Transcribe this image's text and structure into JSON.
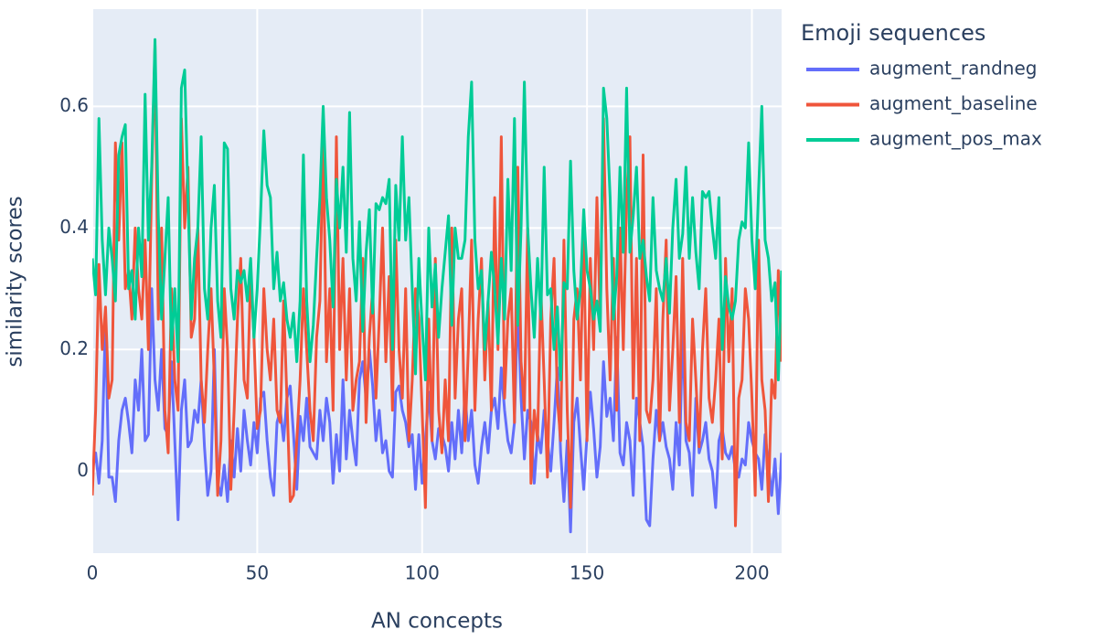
{
  "chart_data": {
    "type": "line",
    "xlabel": "AN concepts",
    "ylabel": "similarity scores",
    "legend_title": "Emoji sequences",
    "legend": "right",
    "grid": true,
    "xlim": [
      0,
      209
    ],
    "ylim": [
      -0.135,
      0.76
    ],
    "xticks": [
      0,
      50,
      100,
      150,
      200
    ],
    "yticks": [
      0,
      0.2,
      0.4,
      0.6
    ],
    "series": [
      {
        "name": "augment_randneg",
        "color": "#636efa",
        "values": [
          0.0,
          0.03,
          -0.02,
          0.05,
          0.25,
          -0.01,
          -0.01,
          -0.05,
          0.05,
          0.1,
          0.12,
          0.08,
          0.03,
          0.15,
          0.1,
          0.2,
          0.05,
          0.06,
          0.3,
          0.15,
          0.1,
          0.2,
          0.07,
          0.06,
          0.18,
          0.05,
          -0.08,
          0.1,
          0.15,
          0.04,
          0.05,
          0.1,
          0.08,
          0.15,
          0.04,
          -0.04,
          0.0,
          0.2,
          -0.02,
          -0.04,
          0.01,
          -0.05,
          0.05,
          -0.01,
          0.07,
          0.0,
          0.1,
          0.05,
          0.01,
          0.08,
          0.03,
          0.12,
          0.13,
          0.05,
          -0.01,
          -0.04,
          0.08,
          0.1,
          0.05,
          0.12,
          0.14,
          0.06,
          -0.03,
          0.09,
          0.05,
          0.12,
          0.04,
          0.03,
          0.02,
          0.1,
          0.05,
          0.12,
          0.08,
          -0.02,
          0.06,
          0.0,
          0.15,
          0.02,
          0.1,
          0.05,
          0.01,
          0.15,
          0.18,
          0.12,
          0.2,
          0.14,
          0.05,
          0.1,
          0.03,
          0.05,
          0.0,
          -0.01,
          0.13,
          0.14,
          0.1,
          0.08,
          0.04,
          0.06,
          -0.03,
          0.06,
          -0.02,
          0.05,
          0.13,
          0.05,
          0.02,
          0.07,
          0.06,
          0.04,
          0.0,
          0.08,
          0.02,
          0.1,
          0.03,
          0.13,
          0.05,
          0.1,
          0.01,
          -0.02,
          0.04,
          0.08,
          0.03,
          0.1,
          0.12,
          0.07,
          0.17,
          0.1,
          0.05,
          0.03,
          0.08,
          0.28,
          0.12,
          0.02,
          0.1,
          0.08,
          -0.02,
          0.06,
          0.03,
          0.1,
          0.05,
          0.0,
          0.08,
          0.17,
          0.03,
          -0.05,
          0.05,
          -0.1,
          0.08,
          0.12,
          0.04,
          -0.03,
          0.06,
          0.13,
          0.07,
          -0.01,
          0.04,
          0.18,
          0.09,
          0.12,
          0.05,
          0.22,
          0.03,
          0.01,
          0.08,
          0.05,
          -0.04,
          0.12,
          0.08,
          0.04,
          -0.08,
          -0.09,
          0.02,
          0.1,
          0.05,
          0.08,
          0.04,
          0.02,
          -0.03,
          0.08,
          0.01,
          0.24,
          0.05,
          0.03,
          -0.04,
          0.12,
          0.03,
          0.05,
          0.08,
          0.02,
          0.0,
          -0.06,
          0.05,
          0.07,
          0.03,
          0.02,
          0.04,
          0.0,
          -0.01,
          0.02,
          0.01,
          0.08,
          0.05,
          0.03,
          0.02,
          -0.03,
          0.06,
          0.01,
          -0.04,
          0.02,
          -0.07,
          0.03
        ]
      },
      {
        "name": "augment_baseline",
        "color": "#ef553b",
        "values": [
          -0.04,
          0.1,
          0.34,
          0.2,
          0.27,
          0.12,
          0.15,
          0.54,
          0.38,
          0.54,
          0.3,
          0.33,
          0.25,
          0.4,
          0.3,
          0.25,
          0.38,
          0.2,
          0.48,
          0.7,
          0.25,
          0.4,
          0.1,
          0.03,
          0.3,
          0.15,
          0.1,
          0.58,
          0.4,
          0.5,
          0.22,
          0.25,
          0.4,
          0.15,
          0.08,
          0.2,
          0.3,
          0.15,
          -0.04,
          0.05,
          0.3,
          0.2,
          -0.03,
          0.1,
          0.25,
          0.35,
          0.15,
          0.12,
          0.33,
          0.22,
          0.07,
          0.1,
          0.3,
          0.2,
          0.15,
          0.25,
          0.1,
          0.08,
          0.28,
          0.12,
          -0.05,
          -0.04,
          0.05,
          0.15,
          0.3,
          0.2,
          0.1,
          0.05,
          0.22,
          0.28,
          0.55,
          0.18,
          0.3,
          0.1,
          0.55,
          0.2,
          0.35,
          0.15,
          0.3,
          0.1,
          0.15,
          0.18,
          0.35,
          0.08,
          0.22,
          0.3,
          0.12,
          0.25,
          0.4,
          0.18,
          0.32,
          0.1,
          0.38,
          0.2,
          0.12,
          0.3,
          0.05,
          0.15,
          0.3,
          0.25,
          0.1,
          -0.06,
          0.25,
          0.05,
          0.35,
          0.1,
          0.03,
          0.15,
          0.05,
          0.4,
          0.12,
          0.25,
          0.3,
          0.05,
          0.2,
          0.38,
          0.1,
          0.25,
          0.35,
          0.15,
          0.28,
          0.1,
          0.45,
          0.2,
          0.55,
          0.12,
          0.25,
          0.3,
          0.08,
          0.5,
          0.18,
          0.1,
          0.4,
          -0.02,
          0.1,
          0.05,
          0.3,
          0.15,
          -0.01,
          0.25,
          0.35,
          0.12,
          0.05,
          0.38,
          0.1,
          -0.06,
          0.25,
          0.3,
          0.15,
          0.4,
          0.05,
          0.35,
          0.2,
          0.45,
          0.25,
          0.58,
          0.3,
          0.15,
          0.35,
          0.1,
          0.4,
          0.2,
          0.45,
          0.55,
          0.12,
          0.35,
          0.05,
          0.52,
          0.1,
          0.08,
          0.15,
          0.3,
          0.05,
          0.25,
          0.38,
          0.1,
          0.2,
          0.32,
          0.08,
          0.35,
          0.08,
          0.05,
          0.25,
          0.15,
          0.04,
          0.2,
          0.3,
          0.12,
          0.08,
          0.15,
          0.25,
          0.02,
          0.35,
          0.18,
          0.3,
          -0.09,
          0.12,
          0.15,
          0.3,
          0.25,
          0.12,
          -0.04,
          0.38,
          0.15,
          0.1,
          -0.05,
          0.15,
          0.12,
          0.33,
          0.18
        ]
      },
      {
        "name": "augment_pos_max",
        "color": "#00cc96",
        "values": [
          0.35,
          0.29,
          0.58,
          0.38,
          0.29,
          0.4,
          0.35,
          0.28,
          0.52,
          0.55,
          0.57,
          0.3,
          0.33,
          0.25,
          0.4,
          0.32,
          0.62,
          0.38,
          0.5,
          0.71,
          0.42,
          0.25,
          0.35,
          0.45,
          0.2,
          0.3,
          0.18,
          0.63,
          0.66,
          0.45,
          0.25,
          0.35,
          0.4,
          0.55,
          0.3,
          0.25,
          0.4,
          0.47,
          0.28,
          0.22,
          0.54,
          0.53,
          0.3,
          0.25,
          0.33,
          0.31,
          0.33,
          0.28,
          0.35,
          0.22,
          0.3,
          0.42,
          0.56,
          0.47,
          0.45,
          0.3,
          0.36,
          0.28,
          0.31,
          0.25,
          0.22,
          0.26,
          0.18,
          0.28,
          0.52,
          0.28,
          0.18,
          0.24,
          0.35,
          0.45,
          0.6,
          0.45,
          0.38,
          0.27,
          0.48,
          0.4,
          0.5,
          0.36,
          0.59,
          0.35,
          0.28,
          0.41,
          0.23,
          0.36,
          0.43,
          0.26,
          0.44,
          0.43,
          0.45,
          0.44,
          0.48,
          0.2,
          0.47,
          0.38,
          0.55,
          0.38,
          0.45,
          0.3,
          0.16,
          0.35,
          0.24,
          0.15,
          0.4,
          0.27,
          0.34,
          0.22,
          0.3,
          0.36,
          0.42,
          0.24,
          0.4,
          0.35,
          0.35,
          0.38,
          0.55,
          0.64,
          0.38,
          0.3,
          0.33,
          0.2,
          0.28,
          0.36,
          0.3,
          0.21,
          0.35,
          0.25,
          0.48,
          0.33,
          0.58,
          0.24,
          0.4,
          0.64,
          0.4,
          0.3,
          0.22,
          0.35,
          0.25,
          0.5,
          0.29,
          0.3,
          0.2,
          0.27,
          0.15,
          0.31,
          0.3,
          0.51,
          0.33,
          0.25,
          0.3,
          0.43,
          0.33,
          0.3,
          0.25,
          0.28,
          0.23,
          0.63,
          0.58,
          0.45,
          0.25,
          0.32,
          0.5,
          0.36,
          0.63,
          0.36,
          0.42,
          0.5,
          0.35,
          0.38,
          0.32,
          0.28,
          0.45,
          0.33,
          0.3,
          0.28,
          0.35,
          0.26,
          0.4,
          0.48,
          0.35,
          0.39,
          0.5,
          0.35,
          0.45,
          0.36,
          0.3,
          0.46,
          0.45,
          0.46,
          0.4,
          0.35,
          0.45,
          0.2,
          0.32,
          0.27,
          0.25,
          0.28,
          0.38,
          0.41,
          0.4,
          0.54,
          0.38,
          0.3,
          0.46,
          0.6,
          0.38,
          0.35,
          0.28,
          0.31,
          0.15,
          0.33
        ]
      }
    ]
  }
}
